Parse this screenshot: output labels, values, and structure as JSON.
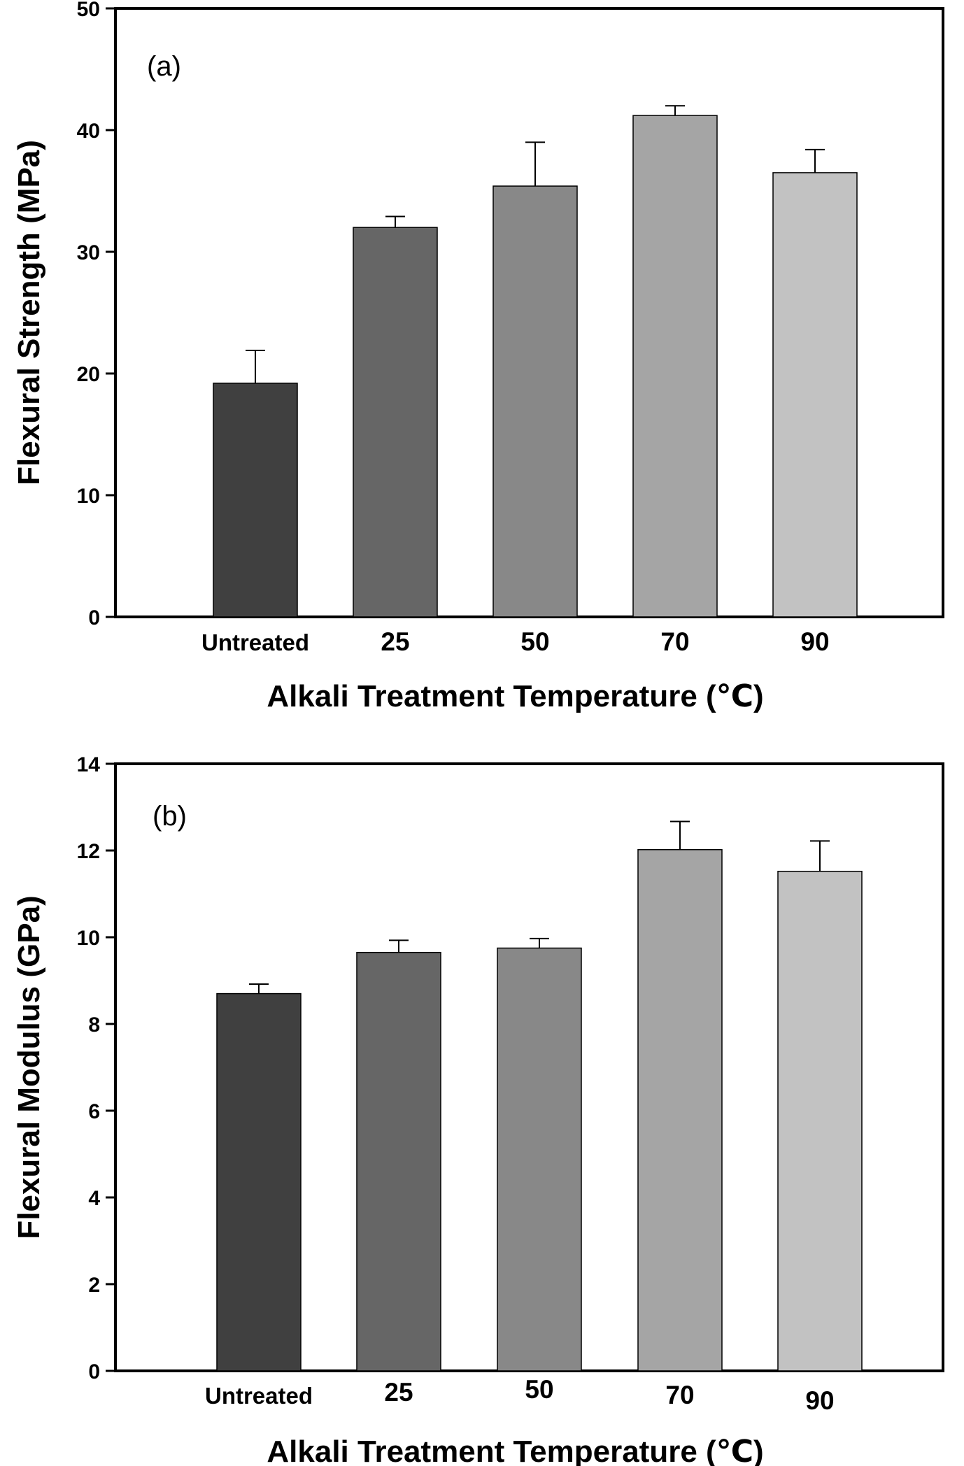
{
  "chart_data": [
    {
      "type": "bar",
      "panel_label": "(a)",
      "categories": [
        "Untreated",
        "25",
        "50",
        "70",
        "90"
      ],
      "values": [
        19.2,
        32.0,
        35.4,
        41.2,
        36.5
      ],
      "error_plus": [
        2.7,
        0.9,
        3.6,
        0.8,
        1.9
      ],
      "bar_colors": [
        "#404040",
        "#666666",
        "#888888",
        "#a5a5a5",
        "#c2c2c2"
      ],
      "xlabel": "Alkali Treatment Temperature (℃)",
      "ylabel": "Flexural Strength (MPa)",
      "ylim": [
        0,
        50
      ],
      "yticks": [
        0,
        10,
        20,
        30,
        40,
        50
      ],
      "grid": false,
      "legend": "none"
    },
    {
      "type": "bar",
      "panel_label": "(b)",
      "categories": [
        "Untreated",
        "25",
        "50",
        "70",
        "90"
      ],
      "values": [
        8.7,
        9.65,
        9.75,
        12.02,
        11.52
      ],
      "error_plus": [
        0.22,
        0.28,
        0.22,
        0.65,
        0.7
      ],
      "bar_colors": [
        "#404040",
        "#666666",
        "#888888",
        "#a5a5a5",
        "#c2c2c2"
      ],
      "xlabel": "Alkali Treatment Temperature (℃)",
      "ylabel": "Flexural Modulus (GPa)",
      "ylim": [
        0,
        14
      ],
      "yticks": [
        0,
        2,
        4,
        6,
        8,
        10,
        12,
        14
      ],
      "grid": false,
      "legend": "none"
    }
  ]
}
